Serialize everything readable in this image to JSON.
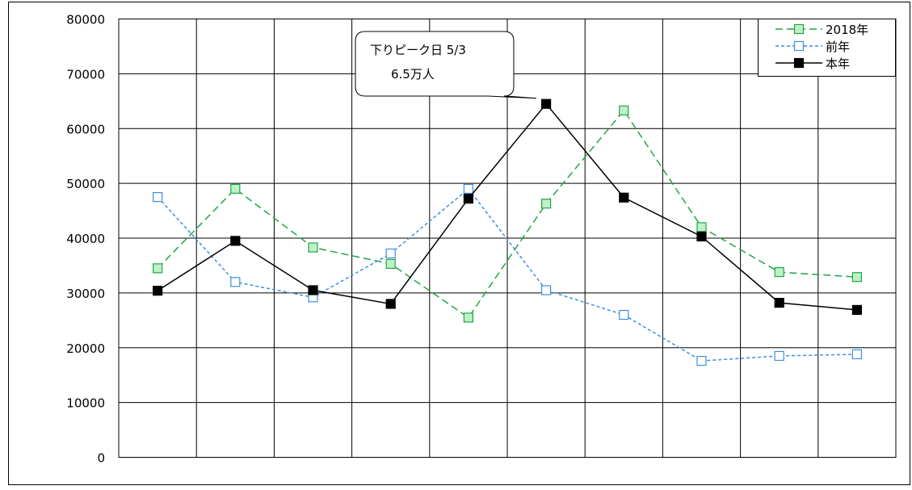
{
  "chart_data": {
    "type": "line",
    "title": "",
    "xlabel": "",
    "ylabel": "",
    "ylim": [
      0,
      80000
    ],
    "yticks": [
      0,
      10000,
      20000,
      30000,
      40000,
      50000,
      60000,
      70000,
      80000
    ],
    "grid": true,
    "legend_position": "top-right",
    "x": [
      1,
      2,
      3,
      4,
      5,
      6,
      7,
      8,
      9,
      10
    ],
    "series": [
      {
        "name": "2018年",
        "color": "#22a545",
        "marker": "square-open",
        "marker_fill": "#bff0c8",
        "line_style": "dashed",
        "values": [
          34500,
          49000,
          38300,
          35300,
          25500,
          46300,
          63300,
          42000,
          33800,
          32900
        ]
      },
      {
        "name": "前年",
        "color": "#3d8ee6",
        "marker": "square-open",
        "marker_fill": "#ffffff",
        "line_style": "dotted",
        "values": [
          47500,
          32000,
          29200,
          37200,
          49000,
          30500,
          26000,
          17600,
          18500,
          18800
        ]
      },
      {
        "name": "本年",
        "color": "#000000",
        "marker": "square-filled",
        "marker_fill": "#000000",
        "line_style": "solid",
        "values": [
          30400,
          39500,
          30500,
          28000,
          47200,
          64500,
          47400,
          40300,
          28200,
          26900
        ]
      }
    ],
    "annotation": {
      "line1": "下りピーク日 5/3",
      "line2": "6.5万人",
      "target_series": "本年",
      "target_index": 5
    }
  }
}
